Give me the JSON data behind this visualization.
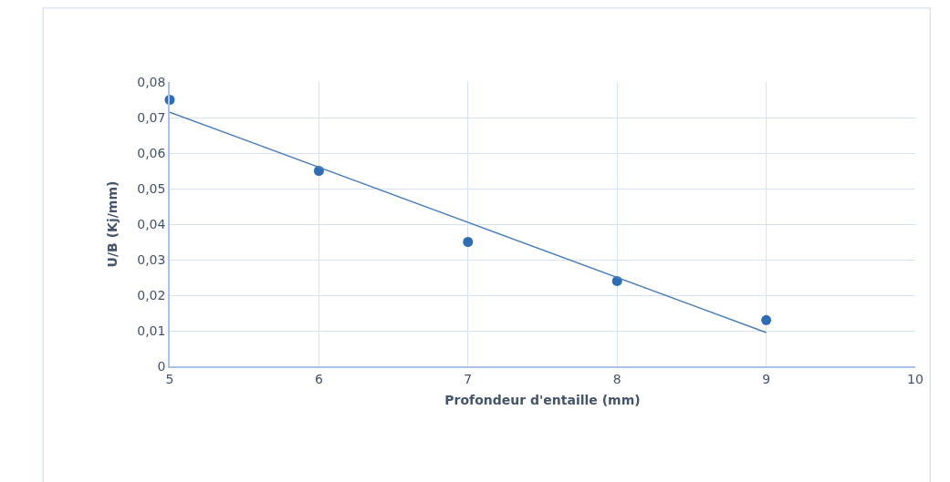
{
  "chart_data": {
    "type": "scatter",
    "xlabel": "Profondeur d'entaille (mm)",
    "ylabel": "U/B (Kj/mm)",
    "x": [
      5,
      6,
      7,
      8,
      9
    ],
    "series": [
      {
        "color": "#2e6db4",
        "values": [
          0.075,
          0.055,
          0.035,
          0.024,
          0.013
        ],
        "marker": "circle"
      },
      {
        "type": "line",
        "color": "#4a7ebb",
        "x": [
          5,
          9
        ],
        "values": [
          0.0715,
          0.0095
        ],
        "line_style": "solid",
        "marker": "none"
      }
    ],
    "xlim": [
      5,
      10
    ],
    "xticks": [
      5,
      6,
      7,
      8,
      9,
      10
    ],
    "ylim": [
      0,
      0.08
    ],
    "yticks": [
      0,
      {
        "value": 0.01,
        "label": "0,01"
      },
      {
        "value": 0.02,
        "label": "0,02"
      },
      {
        "value": 0.03,
        "label": "0,03"
      },
      {
        "value": 0.04,
        "label": "0,04"
      },
      {
        "value": 0.05,
        "label": "0,05"
      },
      {
        "value": 0.06,
        "label": "0,06"
      },
      {
        "value": 0.07,
        "label": "0,07"
      },
      {
        "value": 0.08,
        "label": "0,08"
      }
    ],
    "grid": true
  }
}
